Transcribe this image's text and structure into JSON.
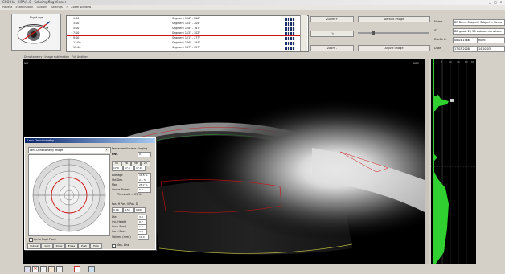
{
  "window": {
    "title": "CSO-HA · HRA/1.0 · Scheimpflug Viewer",
    "menu": [
      "Patient",
      "Examination",
      "Options",
      "Settings",
      "?",
      "Zoom Window"
    ],
    "controls": [
      "_",
      "□",
      "x"
    ]
  },
  "eye_panel": {
    "label": "Right eye"
  },
  "list": {
    "rows": [
      {
        "time": "1:00",
        "segment": "Segment 196° - 286°"
      },
      {
        "time": "3:00",
        "segment": "Segment 114° - 204°"
      },
      {
        "time": "5:00",
        "segment": "Segment 128° - 167°"
      },
      {
        "time": "7:00",
        "segment": "Segment 113° - 302°"
      },
      {
        "time": "9:00",
        "segment": "Segment 121° - 277°"
      },
      {
        "time": "11:00",
        "segment": "Segment 146° - 194°"
      },
      {
        "time": "13:00",
        "segment": "Segment 167° - 327°"
      }
    ],
    "selected_index": 3
  },
  "zoom": {
    "zoom_in": "Zoom +",
    "fit": "Fit",
    "zoom_out": "Zoom -"
  },
  "image_buttons": {
    "default": "Default Image",
    "adjust": "Adjust Image"
  },
  "patient": {
    "name_label": "Name",
    "name_value": "DP Demo Subject / Subject in Demo",
    "id_label": "ID",
    "id_value": "DD grade 2 / 3D cataract densitom.",
    "dob_label": "D.o.Birth",
    "dob_value": "08.04.1966",
    "eye_value": "Right",
    "date_label": "Date",
    "date_value": "17.03.2008",
    "time_value": "14:10:03"
  },
  "tabline": [
    "Densitometry",
    "Image sublimation",
    "Full Addition"
  ],
  "image_labels": {
    "left": "ND",
    "right": "NEO"
  },
  "profile_ticks": [
    "0",
    "20",
    "40",
    "60",
    "80"
  ],
  "dialog": {
    "title": "Lens Densitometry",
    "select_value": "Lens Densitometry Image",
    "pentacam_title": "Pentacam Nucleus Staging",
    "pns_label": "PNS",
    "pns_value": "0",
    "small_btns": [
      "3D",
      "2D",
      "3D",
      "2D"
    ],
    "row_values": [
      "17.0",
      "17.8",
      "17.0"
    ],
    "average_label": "Average",
    "average_value": "16.5 %",
    "stddev_label": "Std.Dev.",
    "stddev_value": "2.1 %",
    "max_label": "Max",
    "max_value": "28.7 %",
    "above_label": "Above Thresh.",
    "above_value": "0 %",
    "threshold_label": "Threshold = 25 %",
    "pos_label": "Pos. H   Pos. V   Pos. D",
    "pos_values": [
      "0.00",
      "4.54",
      "0.00"
    ],
    "dia_label": "Dia",
    "dia_value": "3.0",
    "depth_label": "Cyl. Height",
    "depth_value": "0.7",
    "front_label": "Curv. Front",
    "front_value": "1.0",
    "back_label": "Curv. Back",
    "back_value": "1.0",
    "volume_label": "Volume (mm³)",
    "volume_value": "10.4",
    "checkbox_label": "Up to Pupil Plane",
    "bottom_buttons": [
      "Output",
      "Grid",
      "Draw",
      "Erase",
      "Push",
      "Help"
    ],
    "max_line_label": "Max. Line"
  },
  "footer_icons": [
    "print-icon",
    "close-exam-icon",
    "camera-icon",
    "film-icon",
    "image-icon",
    "mail-icon",
    "help-icon"
  ]
}
